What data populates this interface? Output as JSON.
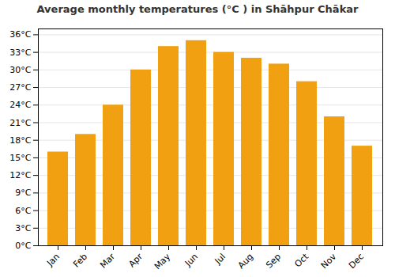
{
  "chart_data": {
    "type": "bar",
    "title": "Average monthly temperatures (°C ) in Shāhpur Chākar",
    "categories": [
      "Jan",
      "Feb",
      "Mar",
      "Apr",
      "May",
      "Jun",
      "Jul",
      "Aug",
      "Sep",
      "Oct",
      "Nov",
      "Dec"
    ],
    "values": [
      16,
      19,
      24,
      30,
      34,
      35,
      33,
      32,
      31,
      28,
      22,
      17
    ],
    "color": "#F0A010",
    "ylim": [
      0,
      37
    ],
    "yticks": [
      {
        "value": 0,
        "label": "0°C"
      },
      {
        "value": 3,
        "label": "3°C"
      },
      {
        "value": 6,
        "label": "6°C"
      },
      {
        "value": 9,
        "label": "9°C"
      },
      {
        "value": 12,
        "label": "12°C"
      },
      {
        "value": 15,
        "label": "15°C"
      },
      {
        "value": 18,
        "label": "18°C"
      },
      {
        "value": 21,
        "label": "21°C"
      },
      {
        "value": 24,
        "label": "24°C"
      },
      {
        "value": 27,
        "label": "27°C"
      },
      {
        "value": 30,
        "label": "30°C"
      },
      {
        "value": 33,
        "label": "33°C"
      },
      {
        "value": 36,
        "label": "36°C"
      }
    ],
    "grid": true
  }
}
